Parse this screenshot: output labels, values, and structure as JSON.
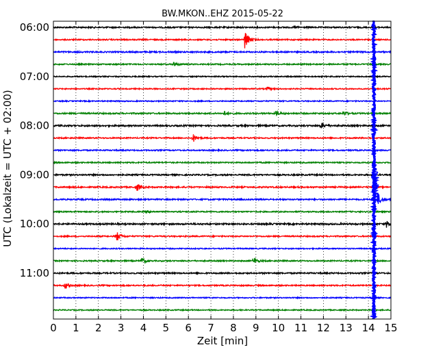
{
  "chart_data": {
    "type": "line",
    "title": "BW.MKON..EHZ 2015-05-22",
    "xlabel": "Zeit  [min]",
    "ylabel": "UTC (Lokalzeit = UTC + 02:00)",
    "xlim": [
      0,
      15
    ],
    "x_ticks": [
      "0",
      "1",
      "2",
      "3",
      "4",
      "5",
      "6",
      "7",
      "8",
      "9",
      "10",
      "11",
      "12",
      "13",
      "14",
      "15"
    ],
    "y_ticks": [
      "06:00",
      "07:00",
      "08:00",
      "09:00",
      "10:00",
      "11:00"
    ],
    "trace_interval_min": 15,
    "grid": true,
    "trace_colors": [
      "#000000",
      "#ff0000",
      "#0000ff",
      "#008000"
    ],
    "traces": [
      {
        "start": "06:00",
        "color": "#000000",
        "noise": 0.45,
        "events": [
          {
            "x": 10.7,
            "amp": 2
          }
        ]
      },
      {
        "start": "06:15",
        "color": "#ff0000",
        "noise": 0.4,
        "events": [
          {
            "x": 8.5,
            "amp": 16
          }
        ]
      },
      {
        "start": "06:30",
        "color": "#0000ff",
        "noise": 0.45,
        "events": []
      },
      {
        "start": "06:45",
        "color": "#008000",
        "noise": 0.4,
        "events": [
          {
            "x": 5.3,
            "amp": 4
          }
        ]
      },
      {
        "start": "07:00",
        "color": "#000000",
        "noise": 0.35,
        "events": []
      },
      {
        "start": "07:15",
        "color": "#ff0000",
        "noise": 0.35,
        "events": [
          {
            "x": 9.5,
            "amp": 2
          }
        ]
      },
      {
        "start": "07:30",
        "color": "#0000ff",
        "noise": 0.35,
        "events": []
      },
      {
        "start": "07:45",
        "color": "#008000",
        "noise": 0.45,
        "events": [
          {
            "x": 7.6,
            "amp": 3
          },
          {
            "x": 9.9,
            "amp": 3
          },
          {
            "x": 12.9,
            "amp": 3
          }
        ]
      },
      {
        "start": "08:00",
        "color": "#000000",
        "noise": 0.5,
        "events": [
          {
            "x": 11.9,
            "amp": 4
          }
        ]
      },
      {
        "start": "08:15",
        "color": "#ff0000",
        "noise": 0.4,
        "events": [
          {
            "x": 6.2,
            "amp": 6
          }
        ]
      },
      {
        "start": "08:30",
        "color": "#0000ff",
        "noise": 0.4,
        "events": []
      },
      {
        "start": "08:45",
        "color": "#008000",
        "noise": 0.4,
        "events": []
      },
      {
        "start": "09:00",
        "color": "#000000",
        "noise": 0.45,
        "events": []
      },
      {
        "start": "09:15",
        "color": "#ff0000",
        "noise": 0.45,
        "events": [
          {
            "x": 3.7,
            "amp": 6
          }
        ]
      },
      {
        "start": "09:30",
        "color": "#0000ff",
        "noise": 0.45,
        "events": [
          {
            "x": 14.4,
            "amp": 10
          }
        ]
      },
      {
        "start": "09:45",
        "color": "#008000",
        "noise": 0.4,
        "events": [
          {
            "x": 4.1,
            "amp": 2
          }
        ]
      },
      {
        "start": "10:00",
        "color": "#000000",
        "noise": 0.5,
        "events": [
          {
            "x": 14.8,
            "amp": 5
          }
        ]
      },
      {
        "start": "10:15",
        "color": "#ff0000",
        "noise": 0.4,
        "events": [
          {
            "x": 2.8,
            "amp": 8
          }
        ]
      },
      {
        "start": "10:30",
        "color": "#0000ff",
        "noise": 0.35,
        "events": []
      },
      {
        "start": "10:45",
        "color": "#008000",
        "noise": 0.4,
        "events": [
          {
            "x": 3.9,
            "amp": 5
          },
          {
            "x": 8.9,
            "amp": 5
          }
        ]
      },
      {
        "start": "11:00",
        "color": "#000000",
        "noise": 0.45,
        "events": []
      },
      {
        "start": "11:15",
        "color": "#ff0000",
        "noise": 0.4,
        "events": [
          {
            "x": 0.5,
            "amp": 5
          }
        ]
      },
      {
        "start": "11:30",
        "color": "#0000ff",
        "noise": 0.35,
        "events": []
      },
      {
        "start": "11:45",
        "color": "#008000",
        "noise": 0.35,
        "events": []
      }
    ],
    "annotations": [
      {
        "type": "large_event",
        "color": "#0000ff",
        "x_min": 14.2,
        "from": "06:00",
        "to": "11:45"
      }
    ]
  }
}
